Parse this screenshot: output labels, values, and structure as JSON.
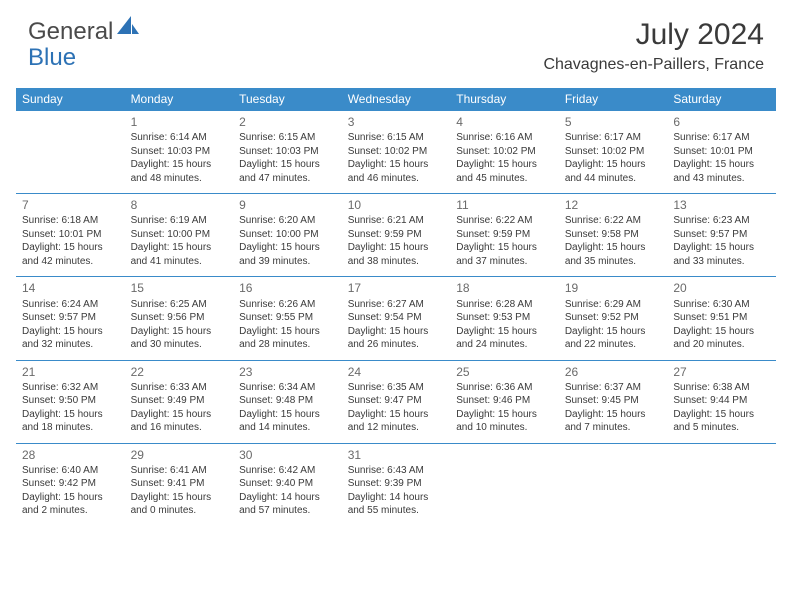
{
  "brand": {
    "part1": "General",
    "part2": "Blue"
  },
  "title": "July 2024",
  "location": "Chavagnes-en-Paillers, France",
  "colors": {
    "header_bg": "#3a8bc9",
    "header_text": "#ffffff",
    "row_border": "#3a8bc9",
    "text": "#3a3a3a",
    "daynum": "#6a6a6a",
    "brand_blue": "#2d72b5"
  },
  "weekdays": [
    "Sunday",
    "Monday",
    "Tuesday",
    "Wednesday",
    "Thursday",
    "Friday",
    "Saturday"
  ],
  "weeks": [
    [
      null,
      {
        "n": "1",
        "sr": "Sunrise: 6:14 AM",
        "ss": "Sunset: 10:03 PM",
        "d1": "Daylight: 15 hours",
        "d2": "and 48 minutes."
      },
      {
        "n": "2",
        "sr": "Sunrise: 6:15 AM",
        "ss": "Sunset: 10:03 PM",
        "d1": "Daylight: 15 hours",
        "d2": "and 47 minutes."
      },
      {
        "n": "3",
        "sr": "Sunrise: 6:15 AM",
        "ss": "Sunset: 10:02 PM",
        "d1": "Daylight: 15 hours",
        "d2": "and 46 minutes."
      },
      {
        "n": "4",
        "sr": "Sunrise: 6:16 AM",
        "ss": "Sunset: 10:02 PM",
        "d1": "Daylight: 15 hours",
        "d2": "and 45 minutes."
      },
      {
        "n": "5",
        "sr": "Sunrise: 6:17 AM",
        "ss": "Sunset: 10:02 PM",
        "d1": "Daylight: 15 hours",
        "d2": "and 44 minutes."
      },
      {
        "n": "6",
        "sr": "Sunrise: 6:17 AM",
        "ss": "Sunset: 10:01 PM",
        "d1": "Daylight: 15 hours",
        "d2": "and 43 minutes."
      }
    ],
    [
      {
        "n": "7",
        "sr": "Sunrise: 6:18 AM",
        "ss": "Sunset: 10:01 PM",
        "d1": "Daylight: 15 hours",
        "d2": "and 42 minutes."
      },
      {
        "n": "8",
        "sr": "Sunrise: 6:19 AM",
        "ss": "Sunset: 10:00 PM",
        "d1": "Daylight: 15 hours",
        "d2": "and 41 minutes."
      },
      {
        "n": "9",
        "sr": "Sunrise: 6:20 AM",
        "ss": "Sunset: 10:00 PM",
        "d1": "Daylight: 15 hours",
        "d2": "and 39 minutes."
      },
      {
        "n": "10",
        "sr": "Sunrise: 6:21 AM",
        "ss": "Sunset: 9:59 PM",
        "d1": "Daylight: 15 hours",
        "d2": "and 38 minutes."
      },
      {
        "n": "11",
        "sr": "Sunrise: 6:22 AM",
        "ss": "Sunset: 9:59 PM",
        "d1": "Daylight: 15 hours",
        "d2": "and 37 minutes."
      },
      {
        "n": "12",
        "sr": "Sunrise: 6:22 AM",
        "ss": "Sunset: 9:58 PM",
        "d1": "Daylight: 15 hours",
        "d2": "and 35 minutes."
      },
      {
        "n": "13",
        "sr": "Sunrise: 6:23 AM",
        "ss": "Sunset: 9:57 PM",
        "d1": "Daylight: 15 hours",
        "d2": "and 33 minutes."
      }
    ],
    [
      {
        "n": "14",
        "sr": "Sunrise: 6:24 AM",
        "ss": "Sunset: 9:57 PM",
        "d1": "Daylight: 15 hours",
        "d2": "and 32 minutes."
      },
      {
        "n": "15",
        "sr": "Sunrise: 6:25 AM",
        "ss": "Sunset: 9:56 PM",
        "d1": "Daylight: 15 hours",
        "d2": "and 30 minutes."
      },
      {
        "n": "16",
        "sr": "Sunrise: 6:26 AM",
        "ss": "Sunset: 9:55 PM",
        "d1": "Daylight: 15 hours",
        "d2": "and 28 minutes."
      },
      {
        "n": "17",
        "sr": "Sunrise: 6:27 AM",
        "ss": "Sunset: 9:54 PM",
        "d1": "Daylight: 15 hours",
        "d2": "and 26 minutes."
      },
      {
        "n": "18",
        "sr": "Sunrise: 6:28 AM",
        "ss": "Sunset: 9:53 PM",
        "d1": "Daylight: 15 hours",
        "d2": "and 24 minutes."
      },
      {
        "n": "19",
        "sr": "Sunrise: 6:29 AM",
        "ss": "Sunset: 9:52 PM",
        "d1": "Daylight: 15 hours",
        "d2": "and 22 minutes."
      },
      {
        "n": "20",
        "sr": "Sunrise: 6:30 AM",
        "ss": "Sunset: 9:51 PM",
        "d1": "Daylight: 15 hours",
        "d2": "and 20 minutes."
      }
    ],
    [
      {
        "n": "21",
        "sr": "Sunrise: 6:32 AM",
        "ss": "Sunset: 9:50 PM",
        "d1": "Daylight: 15 hours",
        "d2": "and 18 minutes."
      },
      {
        "n": "22",
        "sr": "Sunrise: 6:33 AM",
        "ss": "Sunset: 9:49 PM",
        "d1": "Daylight: 15 hours",
        "d2": "and 16 minutes."
      },
      {
        "n": "23",
        "sr": "Sunrise: 6:34 AM",
        "ss": "Sunset: 9:48 PM",
        "d1": "Daylight: 15 hours",
        "d2": "and 14 minutes."
      },
      {
        "n": "24",
        "sr": "Sunrise: 6:35 AM",
        "ss": "Sunset: 9:47 PM",
        "d1": "Daylight: 15 hours",
        "d2": "and 12 minutes."
      },
      {
        "n": "25",
        "sr": "Sunrise: 6:36 AM",
        "ss": "Sunset: 9:46 PM",
        "d1": "Daylight: 15 hours",
        "d2": "and 10 minutes."
      },
      {
        "n": "26",
        "sr": "Sunrise: 6:37 AM",
        "ss": "Sunset: 9:45 PM",
        "d1": "Daylight: 15 hours",
        "d2": "and 7 minutes."
      },
      {
        "n": "27",
        "sr": "Sunrise: 6:38 AM",
        "ss": "Sunset: 9:44 PM",
        "d1": "Daylight: 15 hours",
        "d2": "and 5 minutes."
      }
    ],
    [
      {
        "n": "28",
        "sr": "Sunrise: 6:40 AM",
        "ss": "Sunset: 9:42 PM",
        "d1": "Daylight: 15 hours",
        "d2": "and 2 minutes."
      },
      {
        "n": "29",
        "sr": "Sunrise: 6:41 AM",
        "ss": "Sunset: 9:41 PM",
        "d1": "Daylight: 15 hours",
        "d2": "and 0 minutes."
      },
      {
        "n": "30",
        "sr": "Sunrise: 6:42 AM",
        "ss": "Sunset: 9:40 PM",
        "d1": "Daylight: 14 hours",
        "d2": "and 57 minutes."
      },
      {
        "n": "31",
        "sr": "Sunrise: 6:43 AM",
        "ss": "Sunset: 9:39 PM",
        "d1": "Daylight: 14 hours",
        "d2": "and 55 minutes."
      },
      null,
      null,
      null
    ]
  ]
}
